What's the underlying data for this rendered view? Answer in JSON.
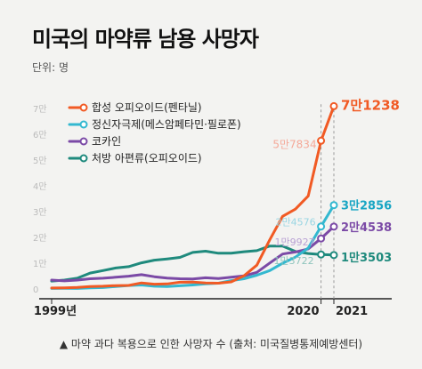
{
  "header": {
    "title": "미국의 마약류 남용 사망자",
    "unit": "단위: 명"
  },
  "caption": "▲ 마약 과다 복용으로 인한 사망자 수 (출처: 미국질병통제예방센터)",
  "chart_data": {
    "type": "line",
    "title": "미국의 마약류 남용 사망자",
    "ylabel": "단위: 명",
    "ylim": [
      0,
      70000
    ],
    "ytick_labels": [
      "0",
      "1만",
      "2만",
      "3만",
      "4만",
      "5만",
      "6만",
      "7만"
    ],
    "ytick_values": [
      0,
      10000,
      20000,
      30000,
      40000,
      50000,
      60000,
      70000
    ],
    "xtick_labels": [
      "1999년",
      "2020",
      "2021"
    ],
    "xtick_values": [
      1999,
      2020,
      2021
    ],
    "xlim": [
      1999,
      2021
    ],
    "grid": false,
    "legend_position": "top-left",
    "series": [
      {
        "name": "합성 오피오이드(펜타닐)",
        "color": "#f15a24",
        "x": [
          1999,
          2000,
          2001,
          2002,
          2003,
          2004,
          2005,
          2006,
          2007,
          2008,
          2009,
          2010,
          2011,
          2012,
          2013,
          2014,
          2015,
          2016,
          2017,
          2018,
          2019,
          2020,
          2021
        ],
        "values": [
          730,
          780,
          960,
          1300,
          1400,
          1660,
          1740,
          2700,
          2200,
          2300,
          2950,
          3000,
          2650,
          2600,
          3100,
          5500,
          9600,
          19400,
          28500,
          31300,
          36400,
          57834,
          71238
        ]
      },
      {
        "name": "정신자극제(메스암페타민·필로폰)",
        "color": "#33b8d0",
        "x": [
          1999,
          2000,
          2001,
          2002,
          2003,
          2004,
          2005,
          2006,
          2007,
          2008,
          2009,
          2010,
          2011,
          2012,
          2013,
          2014,
          2015,
          2016,
          2017,
          2018,
          2019,
          2020,
          2021
        ],
        "values": [
          550,
          580,
          550,
          800,
          900,
          1300,
          1700,
          1900,
          1400,
          1300,
          1600,
          1900,
          2300,
          2600,
          3600,
          4300,
          5700,
          7500,
          10300,
          12700,
          16200,
          24576,
          32856
        ]
      },
      {
        "name": "코카인",
        "color": "#7b4aa6",
        "x": [
          1999,
          2000,
          2001,
          2002,
          2003,
          2004,
          2005,
          2006,
          2007,
          2008,
          2009,
          2010,
          2011,
          2012,
          2013,
          2014,
          2015,
          2016,
          2017,
          2018,
          2019,
          2020,
          2021
        ],
        "values": [
          3800,
          3500,
          3800,
          4300,
          4500,
          4900,
          5300,
          5900,
          5100,
          4600,
          4300,
          4200,
          4700,
          4400,
          4900,
          5400,
          6800,
          10400,
          13900,
          14700,
          15900,
          19927,
          24538
        ]
      },
      {
        "name": "처방 아편류(오피오이드)",
        "color": "#1f8a7d",
        "x": [
          1999,
          2000,
          2001,
          2002,
          2003,
          2004,
          2005,
          2006,
          2007,
          2008,
          2009,
          2010,
          2011,
          2012,
          2013,
          2014,
          2015,
          2016,
          2017,
          2018,
          2019,
          2020,
          2021
        ],
        "values": [
          3400,
          3800,
          4500,
          6500,
          7500,
          8500,
          9000,
          10500,
          11500,
          12000,
          12600,
          14500,
          15000,
          14200,
          14200,
          14800,
          15200,
          17000,
          17000,
          14900,
          14100,
          13722,
          13503
        ]
      }
    ],
    "data_labels": [
      {
        "text": "7만1238",
        "series": 0,
        "x": 2021,
        "value": 71238,
        "color": "#f15a24"
      },
      {
        "text": "5만7834",
        "series": 0,
        "x": 2020,
        "value": 57834,
        "color": "#f4a999"
      },
      {
        "text": "3만2856",
        "series": 1,
        "x": 2021,
        "value": 32856,
        "color": "#1aa6c4"
      },
      {
        "text": "2만4576",
        "series": 1,
        "x": 2020,
        "value": 24576,
        "color": "#9ad6e3"
      },
      {
        "text": "2만4538",
        "series": 2,
        "x": 2021,
        "value": 24538,
        "color": "#7b4aa6"
      },
      {
        "text": "1만9927",
        "series": 2,
        "x": 2020,
        "value": 19927,
        "color": "#b9a2d4"
      },
      {
        "text": "1만3503",
        "series": 3,
        "x": 2021,
        "value": 13503,
        "color": "#1f8a7d"
      },
      {
        "text": "1만3722",
        "series": 3,
        "x": 2020,
        "value": 13722,
        "color": "#8fc5bd"
      }
    ]
  }
}
